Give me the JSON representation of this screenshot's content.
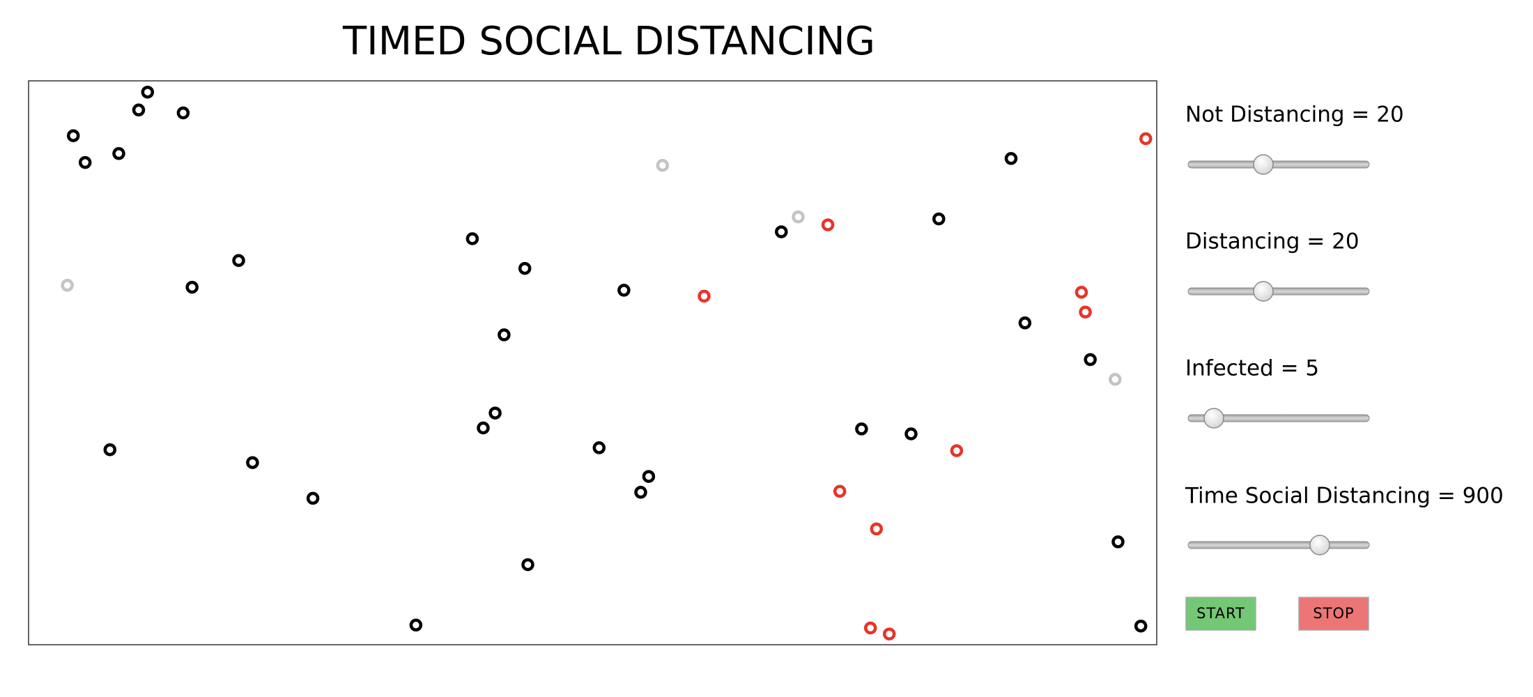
{
  "header": {
    "title": "TIMED SOCIAL DISTANCING"
  },
  "controls": [
    {
      "label": "Not Distancing = 20"
    },
    {
      "label": "Distancing = 20"
    },
    {
      "label": "Infected = 5"
    },
    {
      "label": "Time Social Distancing = 900"
    }
  ],
  "buttons": [
    "START",
    "STOP"
  ]
}
